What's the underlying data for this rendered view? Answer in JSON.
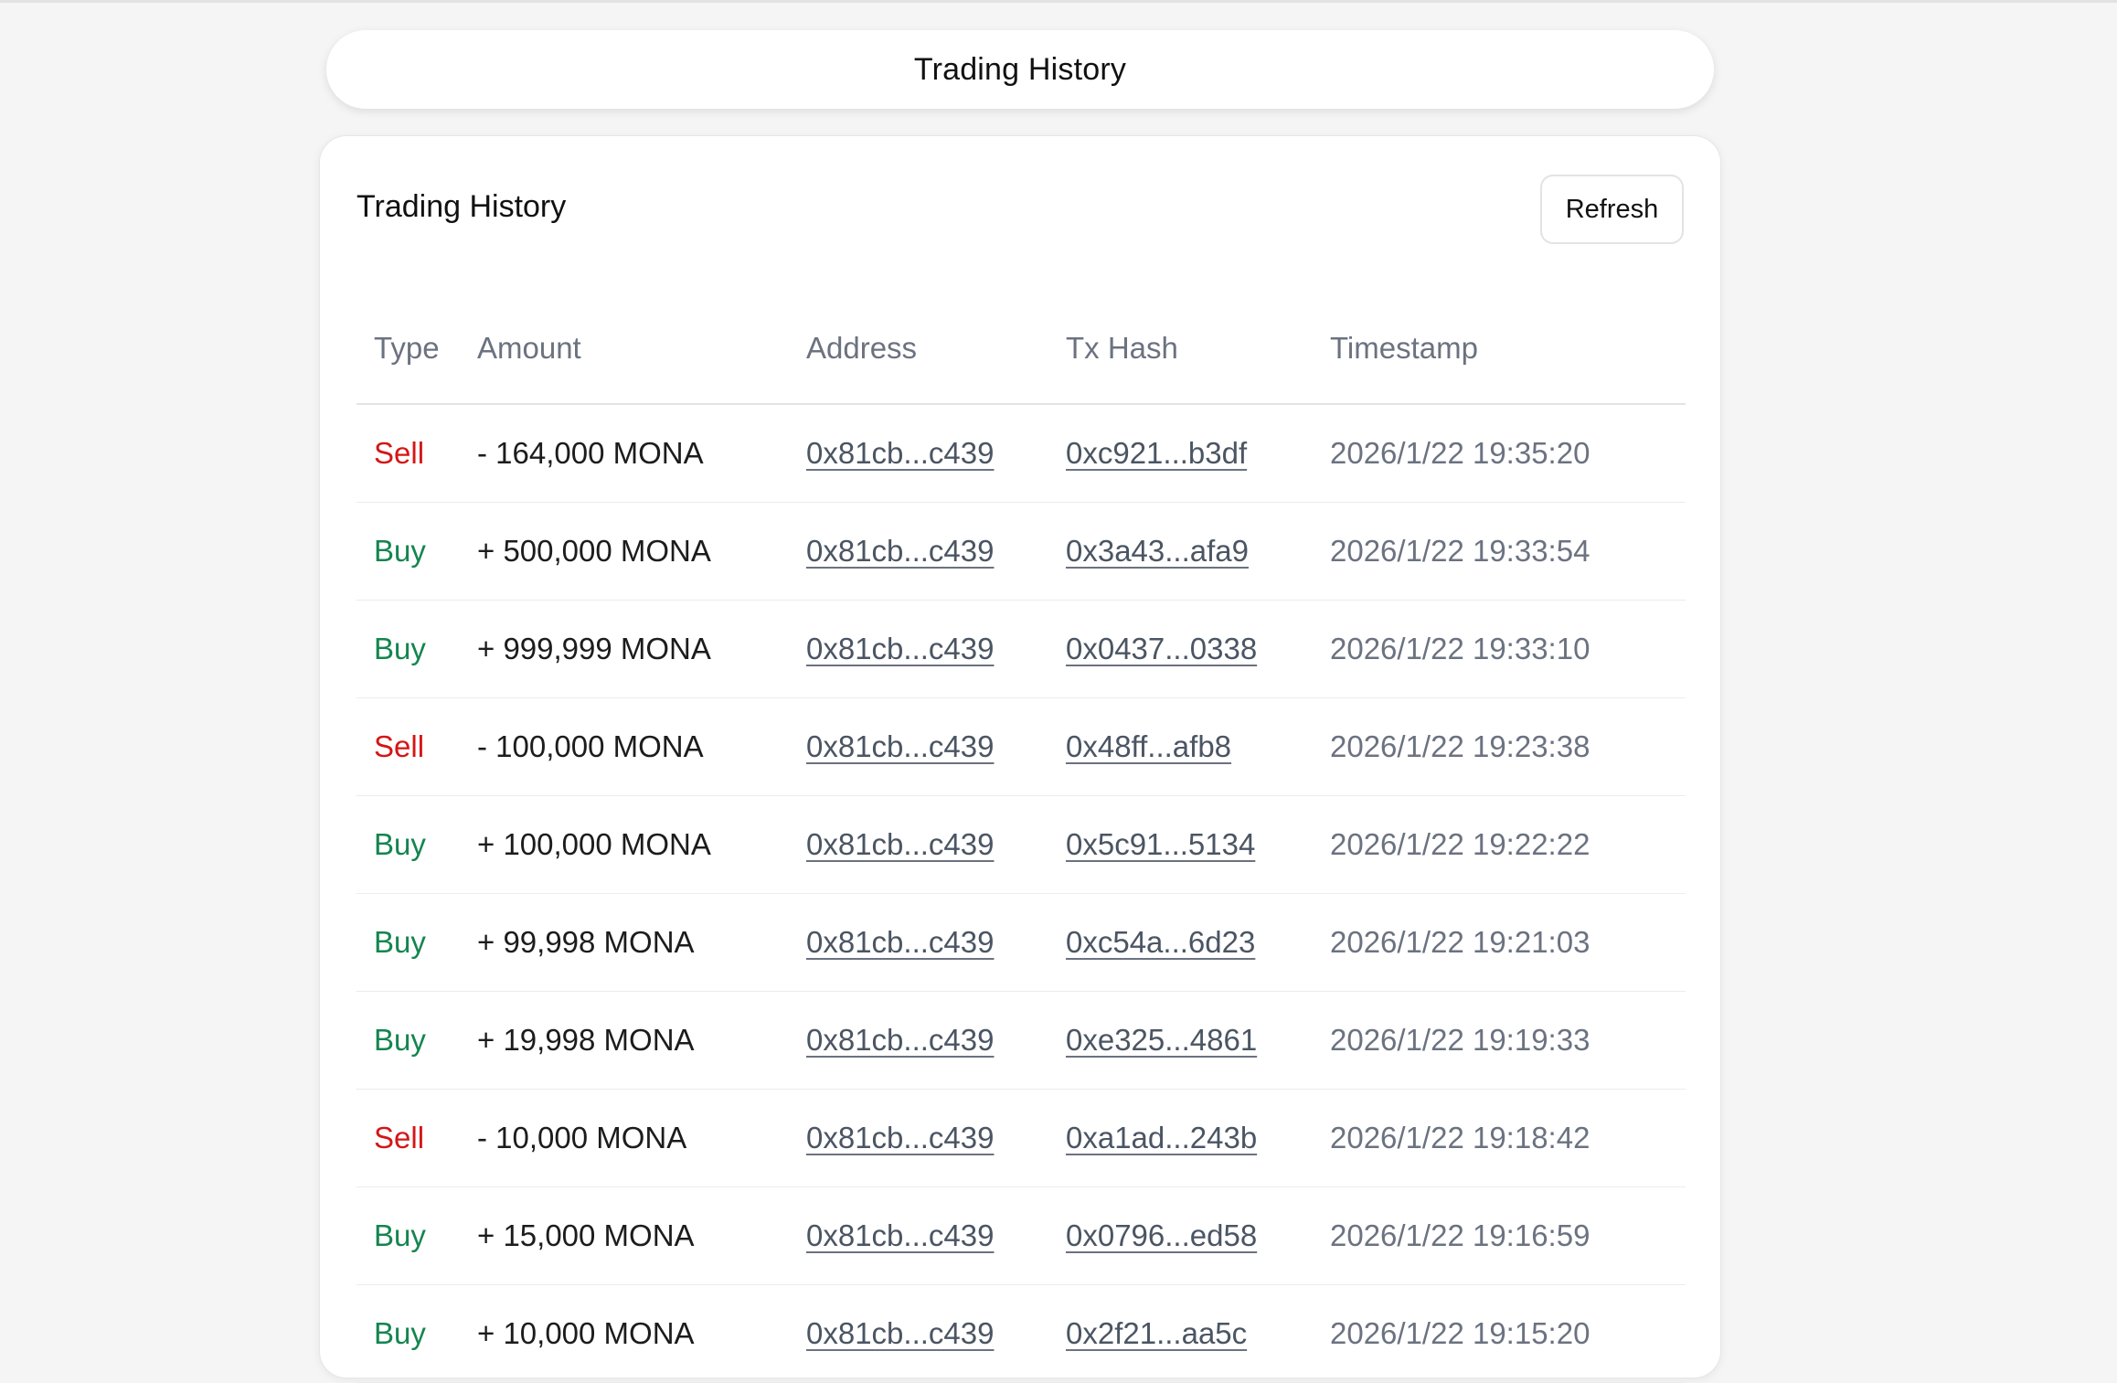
{
  "header": {
    "title": "Trading History"
  },
  "card": {
    "title": "Trading History",
    "refresh_label": "Refresh"
  },
  "table": {
    "columns": [
      "Type",
      "Amount",
      "Address",
      "Tx Hash",
      "Timestamp"
    ],
    "rows": [
      {
        "type": "Sell",
        "amount": "- 164,000 MONA",
        "address": "0x81cb...c439",
        "tx_hash": "0xc921...b3df",
        "timestamp": "2026/1/22 19:35:20"
      },
      {
        "type": "Buy",
        "amount": "+ 500,000 MONA",
        "address": "0x81cb...c439",
        "tx_hash": "0x3a43...afa9",
        "timestamp": "2026/1/22 19:33:54"
      },
      {
        "type": "Buy",
        "amount": "+ 999,999 MONA",
        "address": "0x81cb...c439",
        "tx_hash": "0x0437...0338",
        "timestamp": "2026/1/22 19:33:10"
      },
      {
        "type": "Sell",
        "amount": "- 100,000 MONA",
        "address": "0x81cb...c439",
        "tx_hash": "0x48ff...afb8",
        "timestamp": "2026/1/22 19:23:38"
      },
      {
        "type": "Buy",
        "amount": "+ 100,000 MONA",
        "address": "0x81cb...c439",
        "tx_hash": "0x5c91...5134",
        "timestamp": "2026/1/22 19:22:22"
      },
      {
        "type": "Buy",
        "amount": "+ 99,998 MONA",
        "address": "0x81cb...c439",
        "tx_hash": "0xc54a...6d23",
        "timestamp": "2026/1/22 19:21:03"
      },
      {
        "type": "Buy",
        "amount": "+ 19,998 MONA",
        "address": "0x81cb...c439",
        "tx_hash": "0xe325...4861",
        "timestamp": "2026/1/22 19:19:33"
      },
      {
        "type": "Sell",
        "amount": "- 10,000 MONA",
        "address": "0x81cb...c439",
        "tx_hash": "0xa1ad...243b",
        "timestamp": "2026/1/22 19:18:42"
      },
      {
        "type": "Buy",
        "amount": "+ 15,000 MONA",
        "address": "0x81cb...c439",
        "tx_hash": "0x0796...ed58",
        "timestamp": "2026/1/22 19:16:59"
      },
      {
        "type": "Buy",
        "amount": "+ 10,000 MONA",
        "address": "0x81cb...c439",
        "tx_hash": "0x2f21...aa5c",
        "timestamp": "2026/1/22 19:15:20"
      }
    ]
  },
  "colors": {
    "sell": "#d41616",
    "buy": "#14854f",
    "muted": "#6b7280",
    "background": "#f5f5f5"
  }
}
